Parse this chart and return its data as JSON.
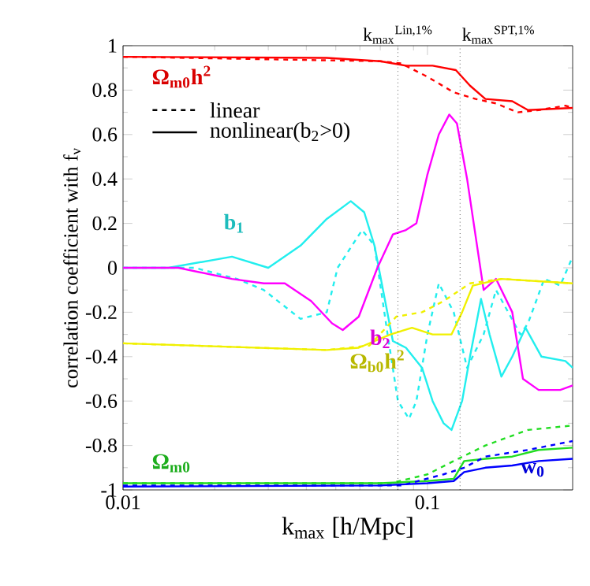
{
  "chart_data": {
    "type": "line",
    "xlabel": "k$_{max}$ [h/Mpc]",
    "ylabel": "correlation coefficient with f$_{ν}$",
    "log": "x",
    "xlim": [
      0.01,
      0.3
    ],
    "ylim": [
      -1,
      1
    ],
    "xticks": [
      {
        "value": 0.01,
        "label": "0.01"
      },
      {
        "value": 0.1,
        "label": "0.1"
      }
    ],
    "yticks": [
      {
        "value": -1,
        "label": "-1"
      },
      {
        "value": -0.8,
        "label": "-0.8"
      },
      {
        "value": -0.6,
        "label": "-0.6"
      },
      {
        "value": -0.4,
        "label": "-0.4"
      },
      {
        "value": -0.2,
        "label": "-0.2"
      },
      0,
      0.2,
      0.4,
      0.6,
      0.8,
      1
    ],
    "grid": false,
    "series": [
      {
        "color": "#ff0000",
        "line_style": "solid",
        "x": [
          0.01,
          0.0467,
          0.07,
          0.085,
          0.104,
          0.124,
          0.138,
          0.155,
          0.19,
          0.214,
          0.3
        ],
        "values": [
          0.95,
          0.945,
          0.93,
          0.91,
          0.91,
          0.89,
          0.82,
          0.76,
          0.75,
          0.71,
          0.72
        ]
      },
      {
        "color": "#ff0000",
        "line_style": "dashed",
        "x": [
          0.01,
          0.07,
          0.082,
          0.1,
          0.122,
          0.144,
          0.168,
          0.198,
          0.232,
          0.284,
          0.3
        ],
        "values": [
          0.95,
          0.93,
          0.92,
          0.86,
          0.79,
          0.76,
          0.74,
          0.7,
          0.71,
          0.73,
          0.72
        ]
      },
      {
        "color": "#22eeee",
        "line_style": "solid",
        "x": [
          0.01,
          0.0141,
          0.0228,
          0.03,
          0.0383,
          0.0467,
          0.056,
          0.062,
          0.067,
          0.077,
          0.085,
          0.096,
          0.104,
          0.113,
          0.12,
          0.13,
          0.138,
          0.15,
          0.16,
          0.175,
          0.19,
          0.21,
          0.237,
          0.284,
          0.3
        ],
        "values": [
          0,
          0,
          0.05,
          0,
          0.1,
          0.22,
          0.3,
          0.25,
          0.1,
          -0.33,
          -0.36,
          -0.45,
          -0.6,
          -0.7,
          -0.73,
          -0.6,
          -0.4,
          -0.14,
          -0.3,
          -0.49,
          -0.4,
          -0.27,
          -0.4,
          -0.42,
          -0.45
        ]
      },
      {
        "color": "#22eeee",
        "line_style": "dashed",
        "x": [
          0.01,
          0.0172,
          0.0237,
          0.029,
          0.0383,
          0.0467,
          0.0507,
          0.061,
          0.067,
          0.074,
          0.08,
          0.087,
          0.092,
          0.1,
          0.109,
          0.122,
          0.135,
          0.153,
          0.168,
          0.202,
          0.214,
          0.242,
          0.273,
          0.3
        ],
        "values": [
          0,
          0,
          -0.05,
          -0.1,
          -0.23,
          -0.2,
          0,
          0.17,
          0.1,
          -0.3,
          -0.6,
          -0.68,
          -0.6,
          -0.3,
          -0.07,
          -0.2,
          -0.45,
          -0.3,
          -0.1,
          -0.3,
          -0.25,
          -0.05,
          -0.08,
          0.05
        ]
      },
      {
        "color": "#ff00ff",
        "line_style": "solid",
        "x": [
          0.01,
          0.0152,
          0.0228,
          0.029,
          0.034,
          0.0415,
          0.0486,
          0.0527,
          0.0595,
          0.0685,
          0.077,
          0.085,
          0.092,
          0.1,
          0.109,
          0.118,
          0.125,
          0.135,
          0.153,
          0.168,
          0.19,
          0.206,
          0.232,
          0.273,
          0.3
        ],
        "values": [
          0,
          0,
          -0.05,
          -0.07,
          -0.07,
          -0.15,
          -0.25,
          -0.28,
          -0.22,
          0,
          0.15,
          0.17,
          0.2,
          0.42,
          0.6,
          0.69,
          0.65,
          0.4,
          -0.1,
          -0.05,
          -0.2,
          -0.5,
          -0.55,
          -0.55,
          -0.53
        ]
      },
      {
        "color": "#f0f000",
        "line_style": "solid",
        "x": [
          0.01,
          0.0467,
          0.0595,
          0.0756,
          0.089,
          0.104,
          0.12,
          0.13,
          0.141,
          0.175,
          0.3
        ],
        "values": [
          -0.34,
          -0.37,
          -0.36,
          -0.3,
          -0.27,
          -0.3,
          -0.3,
          -0.2,
          -0.08,
          -0.05,
          -0.07
        ]
      },
      {
        "color": "#f0f000",
        "line_style": "dashed",
        "x": [
          0.01,
          0.0467,
          0.0645,
          0.079,
          0.096,
          0.113,
          0.138,
          0.175,
          0.3
        ],
        "values": [
          -0.34,
          -0.37,
          -0.35,
          -0.22,
          -0.2,
          -0.15,
          -0.07,
          -0.05,
          -0.07
        ]
      },
      {
        "color": "#22dd22",
        "line_style": "solid",
        "x": [
          0.01,
          0.07,
          0.1,
          0.122,
          0.132,
          0.155,
          0.19,
          0.232,
          0.3
        ],
        "values": [
          -0.97,
          -0.97,
          -0.96,
          -0.95,
          -0.87,
          -0.86,
          -0.85,
          -0.82,
          -0.81
        ]
      },
      {
        "color": "#22dd22",
        "line_style": "dashed",
        "x": [
          0.01,
          0.0756,
          0.1,
          0.122,
          0.155,
          0.214,
          0.3
        ],
        "values": [
          -0.97,
          -0.97,
          -0.93,
          -0.87,
          -0.8,
          -0.73,
          -0.71
        ]
      },
      {
        "color": "#0000ff",
        "line_style": "solid",
        "x": [
          0.01,
          0.07,
          0.1,
          0.122,
          0.132,
          0.155,
          0.19,
          0.232,
          0.3
        ],
        "values": [
          -0.985,
          -0.98,
          -0.97,
          -0.96,
          -0.92,
          -0.9,
          -0.89,
          -0.87,
          -0.86
        ]
      },
      {
        "color": "#0000ff",
        "line_style": "dashed",
        "x": [
          0.01,
          0.082,
          0.113,
          0.132,
          0.155,
          0.214,
          0.3
        ],
        "values": [
          -0.98,
          -0.98,
          -0.93,
          -0.9,
          -0.85,
          -0.82,
          -0.78
        ]
      }
    ],
    "ref_lines": [
      {
        "axis": "x",
        "value": 0.08,
        "label": "k$_{max}$$^{Lin,1%}$",
        "color": "#000000",
        "line_style": "dotted"
      },
      {
        "axis": "x",
        "value": 0.128,
        "label": "k$_{max}$$^{SPT,1%}$",
        "color": "#000000",
        "line_style": "dotted"
      }
    ],
    "annotations": [
      "Ω$_{m0}$h$^{2}$",
      "b$_{1}$",
      "b$_{2}$",
      "Ω$_{b0}$h$^{2}$",
      "Ω$_{m0}$",
      "w$_{0}$",
      "linear",
      "nonlinear(b$_{2}$>0)"
    ]
  }
}
